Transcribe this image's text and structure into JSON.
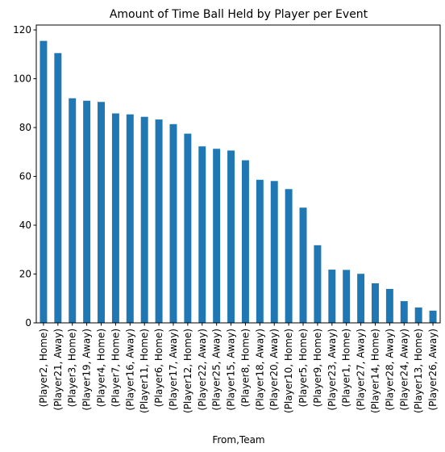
{
  "chart_data": {
    "type": "bar",
    "title": "Amount of Time Ball Held by Player per Event",
    "xlabel": "From,Team",
    "ylabel": "",
    "ylim": [
      0,
      122
    ],
    "yticks": [
      "0",
      "20",
      "40",
      "60",
      "80",
      "100",
      "120"
    ],
    "grid": false,
    "legend": "none",
    "bar_color": "#1f77b4",
    "categories": [
      "(Player2, Home)",
      "(Player21, Away)",
      "(Player3, Home)",
      "(Player19, Away)",
      "(Player4, Home)",
      "(Player7, Home)",
      "(Player16, Away)",
      "(Player11, Home)",
      "(Player6, Home)",
      "(Player17, Away)",
      "(Player12, Home)",
      "(Player22, Away)",
      "(Player25, Away)",
      "(Player15, Away)",
      "(Player8, Home)",
      "(Player18, Away)",
      "(Player20, Away)",
      "(Player10, Home)",
      "(Player5, Home)",
      "(Player9, Home)",
      "(Player23, Away)",
      "(Player1, Home)",
      "(Player27, Away)",
      "(Player14, Home)",
      "(Player28, Away)",
      "(Player24, Away)",
      "(Player13, Home)",
      "(Player26, Away)"
    ],
    "values": [
      115.5,
      110.5,
      92,
      91,
      90.5,
      85.8,
      85.4,
      84.4,
      83.3,
      81.4,
      77.5,
      72.3,
      71.3,
      70.6,
      66.6,
      58.6,
      58.1,
      54.8,
      47.2,
      31.8,
      21.8,
      21.7,
      20.1,
      16.2,
      13.9,
      8.9,
      6.3,
      5
    ]
  }
}
